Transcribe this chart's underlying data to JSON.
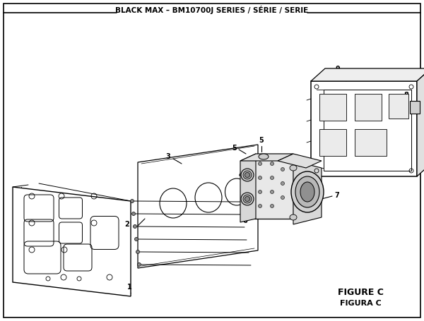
{
  "title": "BLACK MAX – BM10700J SERIES / SÉRIE / SERIE",
  "figure_label": "FIGURE C",
  "figura_label": "FIGURA C",
  "bg_color": "#ffffff",
  "border_color": "#000000",
  "text_color": "#000000"
}
